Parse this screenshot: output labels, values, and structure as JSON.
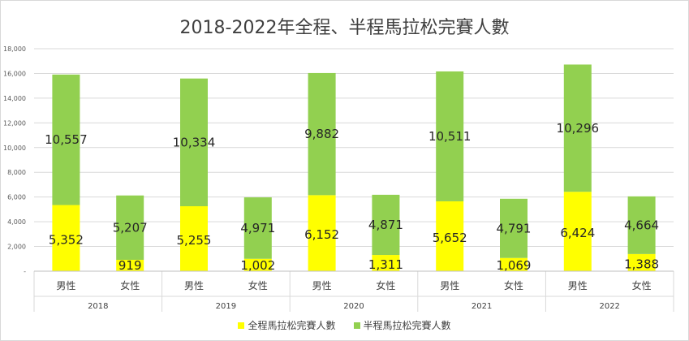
{
  "chart_data": {
    "type": "bar",
    "stacked": true,
    "title": "2018-2022年全程、半程馬拉松完賽人數",
    "groups": [
      {
        "year": "2018",
        "categories": [
          "男性",
          "女性"
        ]
      },
      {
        "year": "2019",
        "categories": [
          "男性",
          "女性"
        ]
      },
      {
        "year": "2020",
        "categories": [
          "男性",
          "女性"
        ]
      },
      {
        "year": "2021",
        "categories": [
          "男性",
          "女性"
        ]
      },
      {
        "year": "2022",
        "categories": [
          "男性",
          "女性"
        ]
      }
    ],
    "series": [
      {
        "name": "全程馬拉松完賽人數",
        "color": "#ffff00",
        "values": [
          5352,
          919,
          5255,
          1002,
          6152,
          1311,
          5652,
          1069,
          6424,
          1388
        ],
        "labels": [
          "5,352",
          "919",
          "5,255",
          "1,002",
          "6,152",
          "1,311",
          "5,652",
          "1,069",
          "6,424",
          "1,388"
        ]
      },
      {
        "name": "半程馬拉松完賽人數",
        "color": "#92d050",
        "values": [
          10557,
          5207,
          10334,
          4971,
          9882,
          4871,
          10511,
          4791,
          10296,
          4664
        ],
        "labels": [
          "10,557",
          "5,207",
          "10,334",
          "4,971",
          "9,882",
          "4,871",
          "10,511",
          "4,791",
          "10,296",
          "4,664"
        ]
      }
    ],
    "yticks": [
      "-",
      "2,000",
      "4,000",
      "6,000",
      "8,000",
      "10,000",
      "12,000",
      "14,000",
      "16,000",
      "18,000"
    ],
    "ylim": [
      0,
      18000
    ],
    "grid": true,
    "legend_position": "bottom"
  }
}
